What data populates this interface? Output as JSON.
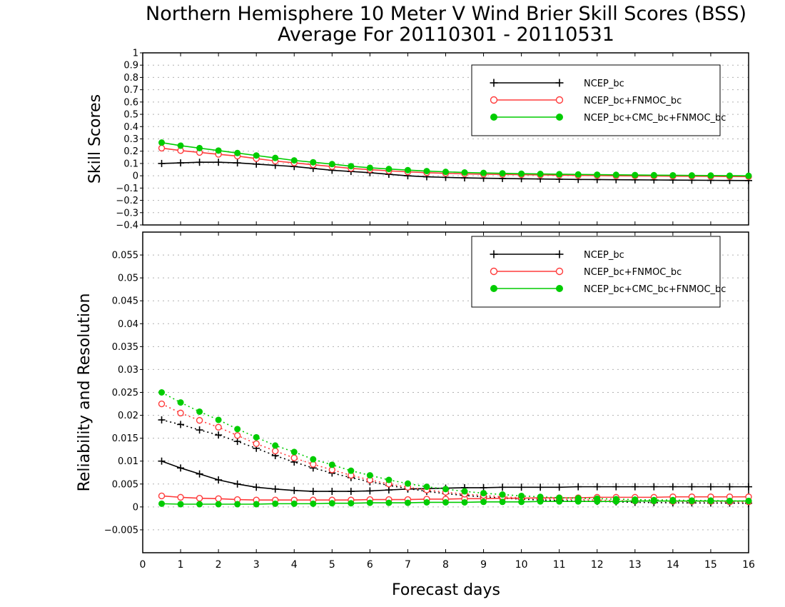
{
  "title_line1": "Northern Hemisphere 10 Meter V Wind Brier Skill Scores (BSS)",
  "title_line2": "Average For 20110301 - 20110531",
  "chart_data": [
    {
      "type": "line",
      "ylabel": "Skill Scores",
      "xlabel": "Forecast days",
      "xlim": [
        0,
        16
      ],
      "ylim": [
        -0.4,
        1.0
      ],
      "x_ticks": [
        0,
        1,
        2,
        3,
        4,
        5,
        6,
        7,
        8,
        9,
        10,
        11,
        12,
        13,
        14,
        15,
        16
      ],
      "y_ticks": [
        -0.4,
        -0.3,
        -0.2,
        -0.1,
        0,
        0.1,
        0.2,
        0.3,
        0.4,
        0.5,
        0.6,
        0.7,
        0.8,
        0.9,
        1
      ],
      "grid": true,
      "legend_position": "top-right",
      "x": [
        0.5,
        1,
        1.5,
        2,
        2.5,
        3,
        3.5,
        4,
        4.5,
        5,
        5.5,
        6,
        6.5,
        7,
        7.5,
        8,
        8.5,
        9,
        9.5,
        10,
        10.5,
        11,
        11.5,
        12,
        12.5,
        13,
        13.5,
        14,
        14.5,
        15,
        15.5,
        16
      ],
      "series": [
        {
          "name": "NCEP_bc",
          "color": "#000000",
          "marker": "plus",
          "style": "solid",
          "values": [
            0.1,
            0.105,
            0.11,
            0.11,
            0.105,
            0.095,
            0.085,
            0.075,
            0.06,
            0.045,
            0.035,
            0.025,
            0.012,
            0.0,
            -0.008,
            -0.013,
            -0.017,
            -0.02,
            -0.022,
            -0.024,
            -0.026,
            -0.028,
            -0.03,
            -0.031,
            -0.032,
            -0.033,
            -0.034,
            -0.035,
            -0.036,
            -0.037,
            -0.038,
            -0.039
          ]
        },
        {
          "name": "NCEP_bc+FNMOC_bc",
          "color": "#ff3b3b",
          "marker": "open-circle",
          "style": "solid",
          "values": [
            0.225,
            0.205,
            0.19,
            0.175,
            0.16,
            0.14,
            0.12,
            0.105,
            0.09,
            0.075,
            0.06,
            0.05,
            0.04,
            0.032,
            0.025,
            0.02,
            0.016,
            0.013,
            0.011,
            0.009,
            0.007,
            0.005,
            0.003,
            0.002,
            0.0,
            -0.001,
            -0.002,
            -0.003,
            -0.004,
            -0.005,
            -0.006,
            -0.007
          ]
        },
        {
          "name": "NCEP_bc+CMC_bc+FNMOC_bc",
          "color": "#00cc00",
          "marker": "filled-circle",
          "style": "solid",
          "values": [
            0.27,
            0.245,
            0.225,
            0.205,
            0.185,
            0.165,
            0.145,
            0.125,
            0.11,
            0.095,
            0.078,
            0.065,
            0.055,
            0.046,
            0.038,
            0.032,
            0.027,
            0.023,
            0.02,
            0.017,
            0.015,
            0.013,
            0.011,
            0.009,
            0.008,
            0.006,
            0.005,
            0.004,
            0.003,
            0.002,
            0.001,
            0.0
          ]
        }
      ]
    },
    {
      "type": "line",
      "ylabel": "Reliability and Resolution",
      "xlabel": "Forecast days",
      "xlim": [
        0,
        16
      ],
      "ylim": [
        -0.01,
        0.06
      ],
      "x_ticks": [
        0,
        1,
        2,
        3,
        4,
        5,
        6,
        7,
        8,
        9,
        10,
        11,
        12,
        13,
        14,
        15,
        16
      ],
      "y_ticks": [
        -0.005,
        0,
        0.005,
        0.01,
        0.015,
        0.02,
        0.025,
        0.03,
        0.035,
        0.04,
        0.045,
        0.05,
        0.055
      ],
      "grid": true,
      "legend_position": "top-right",
      "x": [
        0.5,
        1,
        1.5,
        2,
        2.5,
        3,
        3.5,
        4,
        4.5,
        5,
        5.5,
        6,
        6.5,
        7,
        7.5,
        8,
        8.5,
        9,
        9.5,
        10,
        10.5,
        11,
        11.5,
        12,
        12.5,
        13,
        13.5,
        14,
        14.5,
        15,
        15.5,
        16
      ],
      "series": [
        {
          "name": "NCEP_bc",
          "color": "#000000",
          "marker": "plus",
          "style": "solid",
          "values": [
            0.01,
            0.0085,
            0.0072,
            0.0059,
            0.005,
            0.0043,
            0.0039,
            0.0036,
            0.0034,
            0.0034,
            0.0034,
            0.0035,
            0.0037,
            0.0039,
            0.004,
            0.0041,
            0.0042,
            0.0042,
            0.0043,
            0.0043,
            0.0043,
            0.0043,
            0.0044,
            0.0044,
            0.0044,
            0.0044,
            0.0044,
            0.0044,
            0.0044,
            0.0044,
            0.0044,
            0.0044
          ]
        },
        {
          "name": "NCEP_bc",
          "color": "#000000",
          "marker": "plus",
          "style": "dotted",
          "values": [
            0.019,
            0.018,
            0.0168,
            0.0157,
            0.0143,
            0.0128,
            0.0112,
            0.0098,
            0.0085,
            0.0074,
            0.0064,
            0.0055,
            0.0047,
            0.004,
            0.0034,
            0.0029,
            0.0025,
            0.0022,
            0.0019,
            0.0017,
            0.0015,
            0.0014,
            0.0013,
            0.0012,
            0.0011,
            0.001,
            0.00095,
            0.0009,
            0.00088,
            0.00085,
            0.00083,
            0.0008
          ]
        },
        {
          "name": "NCEP_bc+FNMOC_bc",
          "color": "#ff3b3b",
          "marker": "open-circle",
          "style": "solid",
          "values": [
            0.0024,
            0.0021,
            0.0019,
            0.0018,
            0.0016,
            0.0015,
            0.0015,
            0.0015,
            0.0015,
            0.0015,
            0.0015,
            0.0016,
            0.0016,
            0.0016,
            0.0017,
            0.0017,
            0.0018,
            0.0018,
            0.0019,
            0.0019,
            0.002,
            0.002,
            0.002,
            0.0021,
            0.0021,
            0.0021,
            0.0021,
            0.0022,
            0.0022,
            0.0022,
            0.0022,
            0.0022
          ]
        },
        {
          "name": "NCEP_bc+FNMOC_bc",
          "color": "#ff3b3b",
          "marker": "open-circle",
          "style": "dotted",
          "values": [
            0.0225,
            0.0205,
            0.0189,
            0.0174,
            0.0156,
            0.0138,
            0.0122,
            0.0107,
            0.0093,
            0.0081,
            0.0069,
            0.0059,
            0.005,
            0.0043,
            0.0037,
            0.0032,
            0.0028,
            0.0025,
            0.0022,
            0.002,
            0.0018,
            0.0017,
            0.0016,
            0.0015,
            0.0014,
            0.0013,
            0.0013,
            0.0012,
            0.0012,
            0.0012,
            0.0011,
            0.0011
          ]
        },
        {
          "name": "NCEP_bc+CMC_bc+FNMOC_bc",
          "color": "#00cc00",
          "marker": "filled-circle",
          "style": "solid",
          "values": [
            0.0007,
            0.0006,
            0.0006,
            0.0006,
            0.0006,
            0.0006,
            0.0007,
            0.0007,
            0.0007,
            0.0008,
            0.0008,
            0.0009,
            0.0009,
            0.0009,
            0.001,
            0.001,
            0.001,
            0.0011,
            0.0011,
            0.0011,
            0.0012,
            0.0012,
            0.0012,
            0.0012,
            0.0012,
            0.0013,
            0.0013,
            0.0013,
            0.0013,
            0.0013,
            0.0013,
            0.0013
          ]
        },
        {
          "name": "NCEP_bc+CMC_bc+FNMOC_bc",
          "color": "#00cc00",
          "marker": "filled-circle",
          "style": "dotted",
          "values": [
            0.025,
            0.0228,
            0.0208,
            0.019,
            0.017,
            0.0152,
            0.0134,
            0.012,
            0.0104,
            0.0092,
            0.0079,
            0.0069,
            0.0059,
            0.0051,
            0.0044,
            0.0039,
            0.0034,
            0.003,
            0.0027,
            0.0024,
            0.0022,
            0.002,
            0.0019,
            0.0018,
            0.0017,
            0.0016,
            0.0015,
            0.0015,
            0.0014,
            0.0014,
            0.0013,
            0.0013
          ]
        }
      ]
    }
  ]
}
